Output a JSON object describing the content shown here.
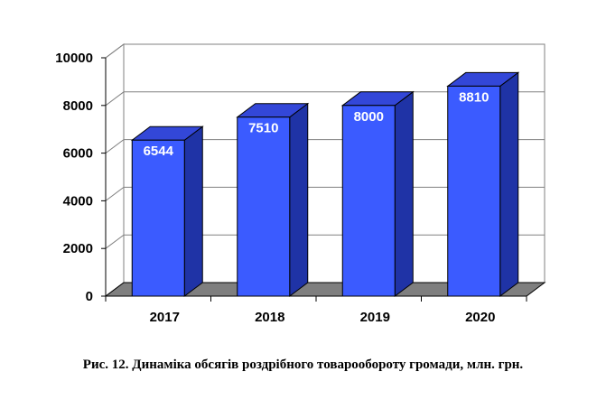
{
  "chart_data": {
    "type": "bar",
    "style": "3d",
    "categories": [
      "2017",
      "2018",
      "2019",
      "2020"
    ],
    "values": [
      6544,
      7510,
      8000,
      8810
    ],
    "data_labels": [
      "6544",
      "7510",
      "8000",
      "8810"
    ],
    "ylim": [
      0,
      10000
    ],
    "yticks": [
      "0",
      "2000",
      "4000",
      "6000",
      "8000",
      "10000"
    ],
    "grid": true,
    "legend": "none",
    "colors": {
      "bar_front": "#3b5bff",
      "bar_side": "#1f33a6",
      "bar_top": "#3347d8",
      "floor": "#7f7f7f",
      "grid": "#808080"
    }
  },
  "caption": "Рис. 12. Динаміка обсягів роздрібного товарообороту громади, млн. грн."
}
